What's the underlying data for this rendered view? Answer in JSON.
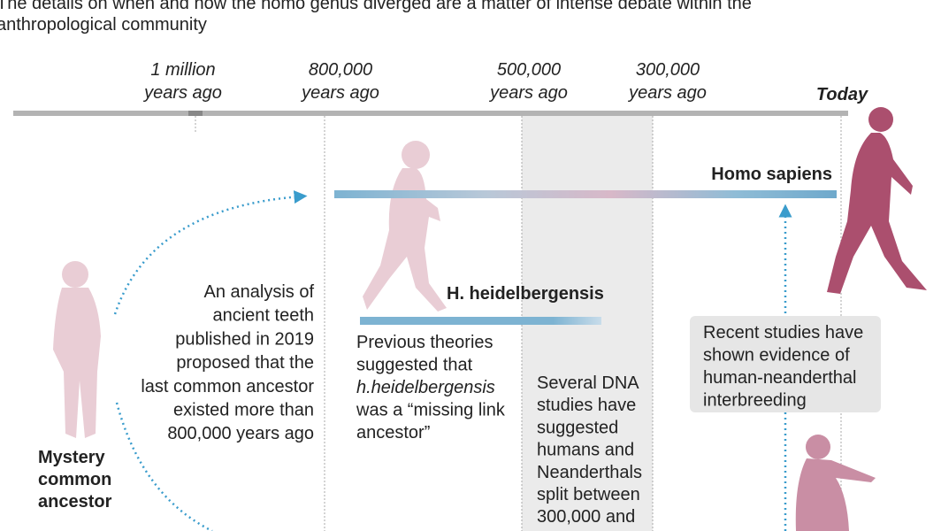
{
  "intro": {
    "lines": [
      "The details on when and how the homo genus diverged are a matter of intense debate within the",
      "anthropological community"
    ]
  },
  "timeline": {
    "markers": [
      {
        "lines": [
          "1 million",
          "years ago"
        ]
      },
      {
        "lines": [
          "800,000",
          "years ago"
        ]
      },
      {
        "lines": [
          "500,000",
          "years ago"
        ]
      },
      {
        "lines": [
          "300,000",
          "years ago"
        ]
      },
      {
        "lines": [
          "Today"
        ]
      }
    ]
  },
  "species": {
    "sapiens": "Homo sapiens",
    "heidelbergensis": "H. heidelbergensis",
    "ancestor": [
      "Mystery",
      "common",
      "ancestor"
    ]
  },
  "notes": {
    "teeth": [
      "An analysis of",
      "ancient teeth",
      "published in 2019",
      "proposed that the",
      "last common ancestor",
      "existed more than",
      "800,000 years ago"
    ],
    "theories": [
      "Previous theories",
      "suggested that",
      "h.heidelbergensis",
      "was a “missing link",
      "ancestor”"
    ],
    "dna": [
      "Several DNA",
      "studies have",
      "suggested",
      "humans and",
      "Neanderthals",
      "split between",
      "300,000 and"
    ],
    "interbreeding": [
      "Recent studies have",
      "shown evidence of",
      "human-neanderthal",
      "interbreeding"
    ]
  }
}
